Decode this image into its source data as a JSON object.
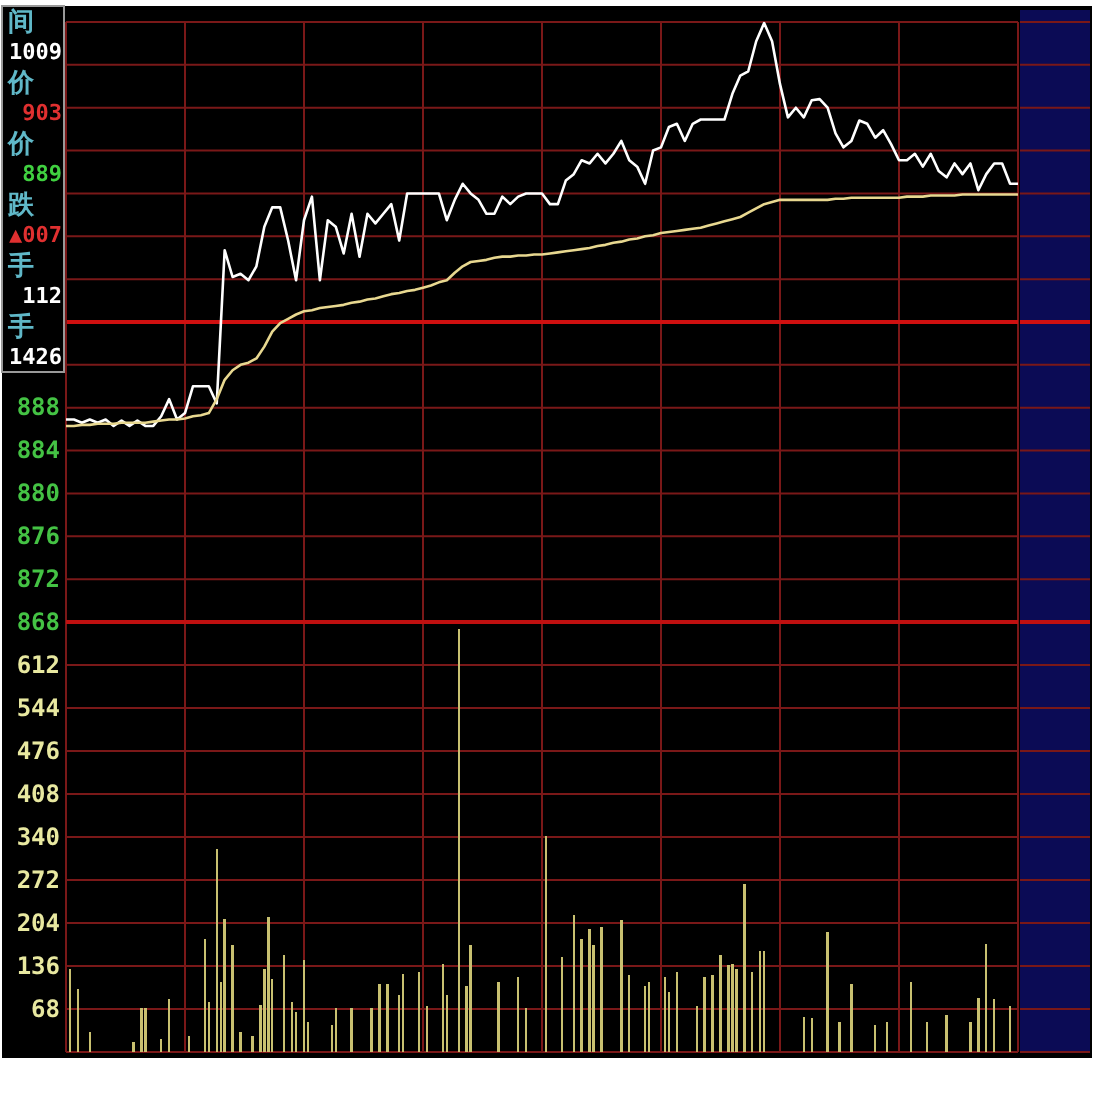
{
  "chart_data": [
    {
      "type": "line",
      "ylim": [
        868,
        924
      ],
      "categories": [
        null,
        null,
        null,
        null,
        null,
        null,
        null,
        null,
        null,
        null,
        null,
        null,
        null,
        null,
        null,
        null,
        null,
        null,
        null,
        null,
        null,
        null,
        null,
        null,
        null,
        null,
        null,
        null,
        null,
        null,
        null,
        null,
        null,
        null,
        null,
        null,
        null,
        null,
        null,
        null,
        null,
        null,
        null,
        null,
        null,
        null,
        null,
        null,
        null,
        null,
        null,
        null,
        null,
        null,
        null,
        null,
        null,
        null,
        null,
        null,
        null,
        null,
        null,
        null,
        null,
        null,
        null,
        null,
        null,
        null,
        null,
        null,
        null,
        null,
        null,
        null,
        null,
        null,
        null,
        null,
        null,
        null,
        null,
        null,
        null,
        null,
        null,
        null,
        null,
        null,
        null,
        null,
        null,
        null,
        null,
        null,
        null,
        null,
        null,
        null,
        null,
        null,
        null,
        null,
        null,
        null,
        null,
        null,
        null,
        null,
        null,
        null,
        null,
        null,
        null,
        null,
        null,
        null,
        null,
        null,
        null
      ],
      "yticks": [
        868,
        872,
        876,
        880,
        884,
        888,
        {
          "value": 892,
          "label": null
        },
        {
          "value": 896,
          "label": null
        },
        {
          "value": 900,
          "label": null
        },
        {
          "value": 904,
          "label": null
        },
        {
          "value": 908,
          "label": null
        },
        {
          "value": 912,
          "label": null
        },
        {
          "value": 916,
          "label": null
        },
        {
          "value": 920,
          "label": null
        },
        {
          "value": 924,
          "label": null
        }
      ],
      "tick_labels": "y",
      "grid": true,
      "ref_lines": [
        {
          "axis": "y",
          "value": 896,
          "color": "#d01010"
        }
      ],
      "series": [
        {
          "color": "#ffffff",
          "values": [
            886.9,
            886.9,
            886.6,
            886.9,
            886.6,
            886.9,
            886.3,
            886.8,
            886.3,
            886.8,
            886.3,
            886.3,
            887.2,
            888.8,
            886.9,
            887.5,
            890.0,
            890.0,
            890.0,
            888.4,
            902.7,
            900.2,
            900.5,
            899.9,
            901.2,
            904.9,
            906.7,
            906.7,
            903.6,
            899.9,
            905.5,
            907.7,
            899.9,
            905.5,
            904.9,
            902.4,
            906.1,
            902.1,
            906.1,
            905.2,
            906.1,
            907.0,
            903.6,
            908.0,
            908.0,
            908.0,
            908.0,
            908.0,
            905.5,
            907.4,
            908.9,
            908.0,
            907.4,
            906.1,
            906.1,
            907.7,
            907.0,
            907.7,
            908.0,
            908.0,
            908.0,
            907.0,
            907.0,
            909.2,
            909.8,
            911.1,
            910.8,
            911.7,
            910.8,
            911.7,
            912.9,
            911.1,
            910.5,
            908.9,
            912.0,
            912.3,
            914.2,
            914.5,
            912.9,
            914.5,
            914.9,
            914.9,
            914.9,
            914.9,
            917.3,
            919.0,
            919.4,
            922.2,
            923.9,
            922.2,
            918.2,
            915.1,
            916.0,
            915.1,
            916.7,
            916.8,
            916.0,
            913.6,
            912.3,
            912.9,
            914.8,
            914.5,
            913.2,
            913.9,
            912.6,
            911.1,
            911.1,
            911.7,
            910.5,
            911.7,
            910.1,
            909.5,
            910.8,
            909.8,
            910.8,
            908.3,
            909.8,
            910.8,
            910.8,
            908.9,
            908.9
          ]
        },
        {
          "color": "#e8d890",
          "values": [
            886.3,
            886.3,
            886.4,
            886.4,
            886.5,
            886.5,
            886.5,
            886.6,
            886.6,
            886.6,
            886.6,
            886.7,
            886.8,
            886.9,
            886.9,
            887.0,
            887.2,
            887.3,
            887.5,
            888.8,
            890.6,
            891.5,
            892.0,
            892.2,
            892.6,
            893.7,
            895.1,
            895.9,
            896.3,
            896.7,
            897.0,
            897.1,
            897.3,
            897.4,
            897.5,
            897.6,
            897.8,
            897.9,
            898.1,
            898.2,
            898.4,
            898.6,
            898.7,
            898.9,
            899.0,
            899.2,
            899.4,
            899.7,
            899.9,
            900.6,
            901.2,
            901.6,
            901.7,
            901.8,
            902.0,
            902.1,
            902.1,
            902.2,
            902.2,
            902.3,
            902.3,
            902.4,
            902.5,
            902.6,
            902.7,
            902.8,
            902.9,
            903.1,
            903.2,
            903.4,
            903.5,
            903.7,
            903.8,
            904.0,
            904.1,
            904.3,
            904.4,
            904.5,
            904.6,
            904.7,
            904.8,
            905.0,
            905.2,
            905.4,
            905.6,
            905.8,
            906.2,
            906.6,
            907.0,
            907.2,
            907.4,
            907.4,
            907.4,
            907.4,
            907.4,
            907.4,
            907.4,
            907.5,
            907.5,
            907.6,
            907.6,
            907.6,
            907.6,
            907.6,
            907.6,
            907.6,
            907.7,
            907.7,
            907.7,
            907.8,
            907.8,
            907.8,
            907.8,
            907.9,
            907.9,
            907.9,
            907.9,
            907.9,
            907.9,
            907.9,
            907.9
          ]
        }
      ]
    },
    {
      "type": "bar",
      "ylim": [
        0,
        680
      ],
      "color": "#c8c070",
      "categories": [
        null,
        null,
        null,
        null,
        null,
        null,
        null,
        null,
        null,
        null,
        null,
        null,
        null,
        null,
        null,
        null,
        null,
        null,
        null,
        null,
        null,
        null,
        null,
        null,
        null,
        null,
        null,
        null,
        null,
        null,
        null,
        null,
        null,
        null,
        null,
        null,
        null,
        null,
        null,
        null,
        null,
        null,
        null,
        null,
        null,
        null,
        null,
        null,
        null,
        null,
        null,
        null,
        null,
        null,
        null,
        null,
        null,
        null,
        null,
        null,
        null,
        null,
        null,
        null,
        null,
        null,
        null,
        null,
        null,
        null,
        null,
        null,
        null,
        null,
        null,
        null,
        null,
        null,
        null,
        null,
        null,
        null,
        null,
        null,
        null,
        null,
        null,
        null,
        null,
        null,
        null,
        null,
        null,
        null,
        null,
        null,
        null,
        null,
        null,
        null,
        null,
        null,
        null,
        null,
        null,
        null,
        null,
        null,
        null,
        null,
        null,
        null,
        null,
        null,
        null,
        null,
        null,
        null,
        null,
        null,
        null,
        null,
        null,
        null,
        null,
        null,
        null,
        null,
        null,
        null,
        null,
        null,
        null,
        null,
        null,
        null,
        null,
        null,
        null,
        null,
        null,
        null,
        null,
        null,
        null,
        null,
        null,
        null,
        null,
        null,
        null,
        null,
        null,
        null,
        null,
        null,
        null,
        null,
        null,
        null,
        null,
        null,
        null,
        null,
        null,
        null,
        null,
        null,
        null,
        null,
        null,
        null,
        null,
        null,
        null,
        null,
        null,
        null,
        null,
        null,
        null,
        null,
        null,
        null,
        null,
        null,
        null,
        null,
        null,
        null,
        null,
        null,
        null,
        null,
        null,
        null,
        null,
        null,
        null,
        null,
        null,
        null,
        null,
        null,
        null,
        null,
        null,
        null,
        null,
        null,
        null,
        null,
        null,
        null,
        null,
        null,
        null,
        null,
        null,
        null,
        null,
        null,
        null,
        null,
        null,
        null,
        null,
        null,
        null,
        null,
        null,
        null,
        null,
        null,
        null,
        null,
        null,
        null,
        null,
        null,
        null
      ],
      "yticks": [
        {
          "value": 0,
          "label": null
        },
        68,
        136,
        204,
        272,
        340,
        408,
        476,
        544,
        612,
        {
          "value": 680,
          "label": null
        }
      ],
      "tick_labels": "y",
      "grid": true,
      "values": [
        null,
        132,
        null,
        100,
        null,
        null,
        32,
        null,
        null,
        null,
        null,
        null,
        null,
        null,
        null,
        null,
        null,
        16,
        null,
        69,
        69,
        null,
        null,
        null,
        21,
        null,
        84,
        null,
        null,
        null,
        null,
        26,
        null,
        null,
        null,
        179,
        79,
        null,
        321,
        111,
        211,
        null,
        169,
        null,
        32,
        null,
        null,
        26,
        null,
        74,
        132,
        213,
        116,
        null,
        null,
        153,
        null,
        79,
        63,
        null,
        145,
        47,
        null,
        null,
        null,
        null,
        null,
        42,
        69,
        null,
        null,
        null,
        69,
        null,
        null,
        null,
        null,
        69,
        null,
        108,
        null,
        108,
        null,
        null,
        90,
        124,
        null,
        null,
        null,
        126,
        null,
        72,
        null,
        null,
        null,
        139,
        90,
        null,
        null,
        669,
        null,
        105,
        169,
        null,
        null,
        null,
        null,
        null,
        null,
        111,
        null,
        null,
        null,
        null,
        118,
        null,
        69,
        null,
        null,
        null,
        null,
        342,
        null,
        null,
        null,
        150,
        null,
        null,
        216,
        null,
        179,
        null,
        195,
        169,
        null,
        198,
        null,
        null,
        null,
        null,
        209,
        null,
        121,
        null,
        null,
        null,
        105,
        111,
        null,
        null,
        null,
        118,
        95,
        null,
        127,
        null,
        null,
        null,
        null,
        72,
        null,
        118,
        null,
        121,
        null,
        153,
        null,
        137,
        139,
        132,
        null,
        266,
        null,
        127,
        null,
        160,
        160,
        null,
        null,
        null,
        null,
        null,
        null,
        null,
        null,
        null,
        55,
        null,
        53,
        null,
        null,
        null,
        190,
        null,
        null,
        47,
        null,
        null,
        108,
        null,
        null,
        null,
        null,
        null,
        42,
        null,
        null,
        47,
        null,
        null,
        null,
        null,
        null,
        111,
        null,
        null,
        null,
        47,
        null,
        null,
        null,
        null,
        58,
        null,
        null,
        null,
        null,
        null,
        47,
        null,
        86,
        null,
        171,
        null,
        84,
        null,
        null,
        null,
        72,
        null,
        null
      ]
    },
    {
      "type": "other",
      "annotations": [
        "间",
        "1009",
        "价",
        "903",
        "价",
        "889",
        "跌",
        "▲007",
        "手",
        "112",
        "手",
        "1426"
      ],
      "colors": [
        "#60b8c8",
        "#ffffff",
        "#60b8c8",
        "#e03030",
        "#60b8c8",
        "#40d040",
        "#60b8c8",
        "#e03030",
        "#60b8c8",
        "#ffffff",
        "#60b8c8",
        "#ffffff"
      ]
    }
  ]
}
